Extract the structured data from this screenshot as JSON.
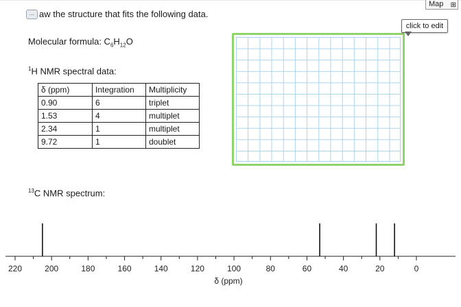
{
  "prompt": {
    "hint_icon": "…",
    "text": "aw the structure that fits the following data."
  },
  "formula": {
    "label": "Molecular formula: C",
    "c_sub": "6",
    "h": "H",
    "h_sub": "12",
    "o": "O"
  },
  "hnmr": {
    "sup": "1",
    "label": "H NMR spectral data:",
    "headers": [
      "δ (ppm)",
      "Integration",
      "Multiplicity"
    ],
    "rows": [
      [
        "0.90",
        "6",
        "triplet"
      ],
      [
        "1.53",
        "4",
        "multiplet"
      ],
      [
        "2.34",
        "1",
        "multiplet"
      ],
      [
        "9.72",
        "1",
        "doublet"
      ]
    ]
  },
  "cnmr": {
    "sup": "13",
    "label": "C NMR spectrum:"
  },
  "drawing": {
    "map_label": "Map",
    "map_icon": "network-icon",
    "edit_label": "click to edit",
    "border_color": "#8fd36a",
    "grid_color": "#a9d3ec"
  },
  "chart_data": {
    "type": "bar",
    "xlabel": "δ (ppm)",
    "xlim": [
      220,
      0
    ],
    "ticks": [
      "220",
      "200",
      "180",
      "160",
      "140",
      "120",
      "100",
      "80",
      "60",
      "40",
      "20",
      "0"
    ],
    "peaks": [
      205,
      53,
      22,
      12
    ]
  }
}
